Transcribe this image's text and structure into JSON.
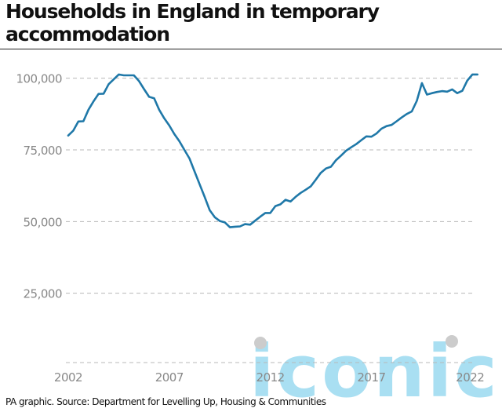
{
  "title": "Households in England in temporary accommodation",
  "source": "PA graphic. Source: Department for Levelling Up, Housing & Communities",
  "watermark": "iconic",
  "colors": {
    "line": "#1f78a8",
    "grid": "#b8b8b8",
    "tick_text": "#888888",
    "watermark": "#a9dff2",
    "watermark_dot": "#cccccc"
  },
  "chart_data": {
    "type": "line",
    "title": "Households in England in temporary accommodation",
    "xlabel": "",
    "ylabel": "",
    "xlim": [
      2002,
      2022.3
    ],
    "ylim": [
      0,
      101000
    ],
    "y_ticks": [
      25000,
      50000,
      75000,
      100000
    ],
    "y_tick_labels": [
      "25,000",
      "50,000",
      "75,000",
      "100,000"
    ],
    "x_ticks": [
      2002,
      2007,
      2012,
      2017,
      2022
    ],
    "x_tick_labels": [
      "2002",
      "2007",
      "2012",
      "2017",
      "2022"
    ],
    "grid": true,
    "series": [
      {
        "x": [
          2002.0,
          2002.25,
          2002.5,
          2002.75,
          2003.0,
          2003.25,
          2003.5,
          2003.75,
          2004.0,
          2004.25,
          2004.5,
          2004.75,
          2005.0,
          2005.25,
          2005.5,
          2005.75,
          2006.0,
          2006.25,
          2006.5,
          2006.75,
          2007.0,
          2007.25,
          2007.5,
          2007.75,
          2008.0,
          2008.25,
          2008.5,
          2008.75,
          2009.0,
          2009.25,
          2009.5,
          2009.75,
          2010.0,
          2010.25,
          2010.5,
          2010.75,
          2011.0,
          2011.25,
          2011.5,
          2011.75,
          2012.0,
          2012.25,
          2012.5,
          2012.75,
          2013.0,
          2013.25,
          2013.5,
          2013.75,
          2014.0,
          2014.25,
          2014.5,
          2014.75,
          2015.0,
          2015.25,
          2015.5,
          2015.75,
          2016.0,
          2016.25,
          2016.5,
          2016.75,
          2017.0,
          2017.25,
          2017.5,
          2017.75,
          2018.0,
          2018.25,
          2018.5,
          2018.75,
          2019.0,
          2019.25,
          2019.5,
          2019.75,
          2020.0,
          2020.25,
          2020.5,
          2020.75,
          2021.0,
          2021.25,
          2021.5,
          2021.75,
          2022.0,
          2022.25
        ],
        "values": [
          80000,
          81700,
          84900,
          85000,
          89000,
          91900,
          94500,
          94600,
          97900,
          99600,
          101300,
          101000,
          101000,
          101000,
          99000,
          96200,
          93500,
          93000,
          89000,
          86000,
          83500,
          80500,
          78000,
          75000,
          72000,
          67500,
          63000,
          58600,
          54000,
          51500,
          50200,
          49700,
          48000,
          48200,
          48300,
          49100,
          48900,
          50300,
          51700,
          53000,
          53000,
          55400,
          56000,
          57600,
          57000,
          58600,
          60000,
          61100,
          62300,
          64600,
          67000,
          68500,
          69100,
          71400,
          73000,
          74700,
          75900,
          77000,
          78400,
          79700,
          79600,
          80700,
          82400,
          83300,
          83700,
          85000,
          86300,
          87500,
          88400,
          92100,
          98300,
          94300,
          94800,
          95200,
          95500,
          95300,
          96100,
          94800,
          95600,
          99200,
          101300,
          101300
        ]
      }
    ]
  }
}
